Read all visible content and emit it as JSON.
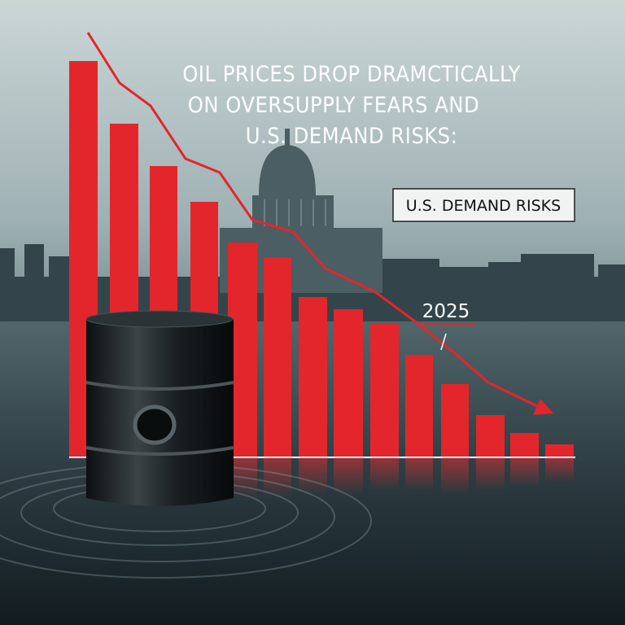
{
  "headline": {
    "lines": [
      "OIL PRICES DROP DRAMCTICALLY",
      "ON OVERSUPPLY FEARS AND",
      "U.S. DEMAND RISKS:"
    ]
  },
  "label_box": "U.S. DEMAND RISKS",
  "year_label": "2025"
}
